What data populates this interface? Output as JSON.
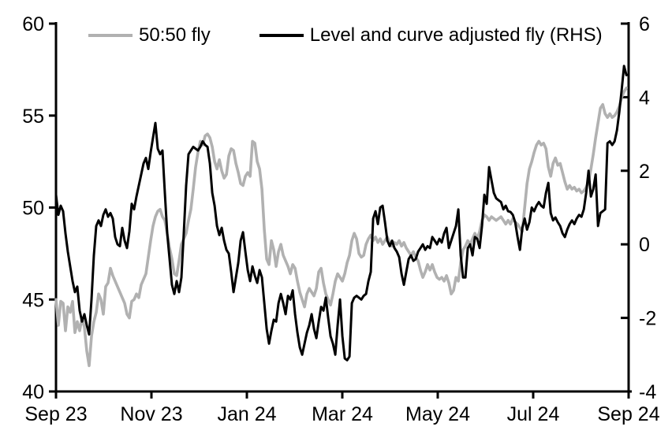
{
  "figure": {
    "background_color": "#ffffff",
    "axis_color": "#000000",
    "tick_label_color": "#000000"
  },
  "chart_data": {
    "type": "line",
    "title": "",
    "xlabel": "",
    "ylabel_left": "",
    "ylabel_right": "",
    "grid": "off",
    "legend_position": "top-inside",
    "x_axis": {
      "tick_labels": [
        "Sep 23",
        "Nov 23",
        "Jan 24",
        "Mar 24",
        "May 24",
        "Jul 24",
        "Sep 24"
      ],
      "start_month": 0,
      "end_month": 12
    },
    "left_axis": {
      "ticks": [
        40,
        45,
        50,
        55,
        60
      ],
      "range": [
        40,
        60
      ]
    },
    "right_axis": {
      "ticks": [
        -4,
        -2,
        0,
        2,
        4,
        6
      ],
      "range": [
        -4,
        6
      ]
    },
    "legend": [
      {
        "label": "50:50 fly",
        "color": "#b1b1b1"
      },
      {
        "label": "Level and curve adjusted fly (RHS)",
        "color": "#000000"
      }
    ],
    "series": [
      {
        "name": "50:50 fly",
        "axis": "left",
        "color": "#b1b1b1",
        "line_width": 3.6,
        "x_start_month": 0,
        "x_step_month": 0.0496,
        "values": [
          45.0,
          43.6,
          44.9,
          44.8,
          43.3,
          44.6,
          44.3,
          44.9,
          43.2,
          43.8,
          43.3,
          44.0,
          43.5,
          42.2,
          41.4,
          43.0,
          43.8,
          44.3,
          45.3,
          45.0,
          44.2,
          45.7,
          45.9,
          46.7,
          46.3,
          46.0,
          45.7,
          45.4,
          45.1,
          44.8,
          44.2,
          44.0,
          44.9,
          45.0,
          45.3,
          45.1,
          45.8,
          46.1,
          46.4,
          47.3,
          48.2,
          49.0,
          49.5,
          49.8,
          49.9,
          49.5,
          49.3,
          48.6,
          47.8,
          47.2,
          46.4,
          46.3,
          47.1,
          48.0,
          48.3,
          48.6,
          49.3,
          49.9,
          51.0,
          52.2,
          53.0,
          53.6,
          53.4,
          53.9,
          54.0,
          53.8,
          53.3,
          52.5,
          52.1,
          52.6,
          52.0,
          51.6,
          51.8,
          52.8,
          53.2,
          53.1,
          52.4,
          51.9,
          51.3,
          51.2,
          51.7,
          51.9,
          51.7,
          53.6,
          53.5,
          52.5,
          52.1,
          51.0,
          48.8,
          47.2,
          46.9,
          48.2,
          47.7,
          46.8,
          47.6,
          48.0,
          47.4,
          47.1,
          46.8,
          46.4,
          46.9,
          46.7,
          46.0,
          45.4,
          45.0,
          44.6,
          45.3,
          45.6,
          45.4,
          45.2,
          45.6,
          46.5,
          46.7,
          45.9,
          45.3,
          45.0,
          44.7,
          45.3,
          46.0,
          46.4,
          46.2,
          46.0,
          46.4,
          47.0,
          47.4,
          48.2,
          48.6,
          48.3,
          47.5,
          47.3,
          47.4,
          48.0,
          48.3,
          48.5,
          48.2,
          48.4,
          48.1,
          48.3,
          48.0,
          48.2,
          48.4,
          48.1,
          47.9,
          48.1,
          48.0,
          48.2,
          47.9,
          48.1,
          47.8,
          47.6,
          47.4,
          47.6,
          47.3,
          47.1,
          46.6,
          46.2,
          46.5,
          46.9,
          46.6,
          46.9,
          46.5,
          46.2,
          46.1,
          46.2,
          46.0,
          46.3,
          45.9,
          45.3,
          45.5,
          46.2,
          46.0,
          47.0,
          47.7,
          47.9,
          48.2,
          48.0,
          48.3,
          48.6,
          48.3,
          48.7,
          49.3,
          49.6,
          49.5,
          49.3,
          49.5,
          49.4,
          49.3,
          49.4,
          49.5,
          49.3,
          49.1,
          49.3,
          49.1,
          49.4,
          49.2,
          49.1,
          48.9,
          48.7,
          50.0,
          51.3,
          52.1,
          52.5,
          53.0,
          53.4,
          53.6,
          53.4,
          53.5,
          53.2,
          52.2,
          51.7,
          52.4,
          52.7,
          52.3,
          52.4,
          51.9,
          51.4,
          51.0,
          51.2,
          51.0,
          51.1,
          50.9,
          51.0,
          50.8,
          50.9,
          51.1,
          51.4,
          52.1,
          52.9,
          53.8,
          54.6,
          55.4,
          55.6,
          55.1,
          54.9,
          55.1,
          54.9,
          55.0,
          55.2,
          55.5,
          56.0,
          56.3,
          56.5
        ]
      },
      {
        "name": "Level and curve adjusted fly (RHS)",
        "axis": "right",
        "color": "#000000",
        "line_width": 3.0,
        "x_start_month": 0,
        "x_step_month": 0.0496,
        "values": [
          1.35,
          0.8,
          1.05,
          0.9,
          0.3,
          -0.2,
          -0.6,
          -1.0,
          -1.3,
          -1.15,
          -1.8,
          -2.1,
          -1.9,
          -2.2,
          -2.45,
          -1.5,
          -0.3,
          0.5,
          0.65,
          0.5,
          0.8,
          0.95,
          0.75,
          0.85,
          0.7,
          0.2,
          0.0,
          -0.05,
          0.45,
          0.1,
          -0.1,
          0.35,
          1.1,
          0.95,
          1.3,
          1.6,
          1.9,
          2.2,
          2.35,
          2.05,
          2.5,
          2.9,
          3.3,
          2.6,
          2.45,
          2.55,
          1.4,
          0.3,
          -0.4,
          -1.1,
          -1.35,
          -1.0,
          -1.3,
          -0.9,
          0.3,
          1.6,
          2.45,
          2.55,
          2.65,
          2.6,
          2.55,
          2.65,
          2.8,
          2.7,
          2.65,
          2.2,
          1.4,
          1.05,
          0.5,
          0.25,
          0.45,
          0.1,
          -0.15,
          -0.25,
          -0.75,
          -1.3,
          -0.9,
          -0.5,
          0.1,
          0.33,
          -0.2,
          -0.7,
          -1.0,
          -0.6,
          -0.85,
          -1.05,
          -0.7,
          -0.9,
          -1.6,
          -2.3,
          -2.7,
          -2.35,
          -2.05,
          -2.1,
          -1.6,
          -1.35,
          -1.6,
          -1.9,
          -1.4,
          -1.5,
          -1.25,
          -1.9,
          -2.4,
          -2.8,
          -3.0,
          -2.7,
          -2.4,
          -2.2,
          -1.9,
          -2.3,
          -2.55,
          -2.1,
          -1.7,
          -1.8,
          -1.45,
          -2.0,
          -2.5,
          -2.7,
          -3.0,
          -2.2,
          -1.5,
          -2.5,
          -3.1,
          -3.15,
          -3.05,
          -1.6,
          -1.45,
          -1.4,
          -1.45,
          -1.5,
          -1.4,
          -1.35,
          -1.0,
          -0.75,
          0.7,
          0.9,
          0.55,
          1.0,
          1.05,
          0.6,
          0.1,
          -0.05,
          0.1,
          -0.1,
          -0.2,
          -0.35,
          -0.8,
          -1.1,
          -0.75,
          -0.4,
          -0.3,
          -0.45,
          -0.4,
          -0.2,
          -0.1,
          0.0,
          -0.15,
          -0.05,
          -0.1,
          0.2,
          0.1,
          0.0,
          0.15,
          0.05,
          0.3,
          0.45,
          -0.1,
          0.1,
          0.3,
          0.5,
          0.95,
          -0.3,
          -0.9,
          -0.9,
          -0.1,
          0.0,
          -0.3,
          0.2,
          0.15,
          -0.1,
          0.5,
          1.35,
          1.1,
          2.1,
          1.75,
          1.4,
          1.25,
          1.2,
          1.15,
          0.95,
          1.05,
          0.9,
          0.88,
          0.8,
          0.6,
          0.2,
          -0.15,
          0.45,
          0.7,
          0.4,
          0.6,
          1.0,
          0.9,
          1.05,
          1.15,
          1.05,
          1.0,
          1.4,
          1.67,
          0.85,
          0.65,
          0.73,
          0.6,
          0.5,
          0.3,
          0.2,
          0.4,
          0.55,
          0.65,
          0.55,
          0.7,
          0.8,
          0.75,
          0.95,
          1.4,
          2.0,
          1.3,
          1.5,
          1.9,
          0.5,
          0.85,
          0.9,
          0.95,
          2.75,
          2.8,
          2.7,
          2.8,
          3.1,
          3.6,
          4.2,
          4.85,
          4.6
        ]
      }
    ]
  }
}
